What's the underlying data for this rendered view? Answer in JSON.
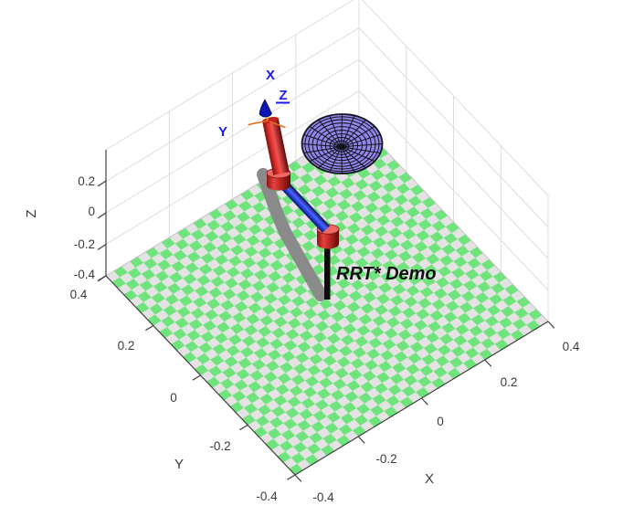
{
  "annotation": {
    "title": "RRT* Demo"
  },
  "axes": {
    "x": {
      "title": "X",
      "ticks": [
        "-0.4",
        "-0.2",
        "0",
        "0.2",
        "0.4"
      ]
    },
    "y": {
      "title": "Y",
      "ticks": [
        "0.4",
        "0.2",
        "0",
        "-0.2",
        "-0.4"
      ]
    },
    "z": {
      "title": "Z",
      "ticks": [
        "0.2",
        "0",
        "-0.2",
        "-0.4"
      ]
    }
  },
  "end_effector_frame": {
    "x": "X",
    "y": "Y",
    "z": "Z"
  },
  "colors": {
    "background": "#ffffff",
    "floor_green": "#6fe47d",
    "floor_light": "#e5e2e4",
    "grid_gray": "#dcdcdc",
    "axis_dark": "#404040",
    "tick_text": "#3a3a3a",
    "link_red": "#e23230",
    "link_blue": "#2c47ee",
    "joint_cap_red": "#ed6a62",
    "base_black": "#0d0d0d",
    "shadow_gray": "#8a8a8a",
    "disk_fill": "#9185ea",
    "disk_wire": "#14141e",
    "frame_label_blue": "#1a1af0",
    "frame_axis_orange": "#e2711d",
    "annotation_black": "#101010"
  },
  "chart_data": {
    "type": "3d-plot",
    "title": "RRT* Demo",
    "projection": "orthographic, MATLAB default 3-D view (azimuth -37.5 deg, elevation 30 deg)",
    "grid": true,
    "axes": {
      "x": {
        "label": "X",
        "range": [
          -0.4,
          0.4
        ],
        "ticks": [
          -0.4,
          -0.2,
          0,
          0.2,
          0.4
        ]
      },
      "y": {
        "label": "Y",
        "range": [
          -0.4,
          0.4
        ],
        "ticks": [
          -0.4,
          -0.2,
          0,
          0.2,
          0.4
        ]
      },
      "z": {
        "label": "Z",
        "range": [
          -0.4,
          0.4
        ],
        "visible_ticks": [
          -0.4,
          -0.2,
          0,
          0.2
        ]
      }
    },
    "objects": [
      {
        "name": "checkerboard-floor",
        "type": "surface",
        "z": -0.4,
        "extent_x": [
          -0.4,
          0.4
        ],
        "extent_y": [
          -0.4,
          0.4
        ],
        "squares_per_side": 32,
        "square_size": 0.025,
        "colors": [
          "green",
          "light-gray"
        ]
      },
      {
        "name": "obstacle-disk",
        "type": "wireframe-ellipsoid",
        "center_approx": [
          0.18,
          0.17,
          0.1
        ],
        "radius_approx": 0.1,
        "fill": "purple",
        "wire": "black",
        "rings": 9,
        "spokes": 20
      },
      {
        "name": "manipulator",
        "type": "robot-arm",
        "base_xy": [
          0,
          0
        ],
        "base_z": -0.4,
        "links": [
          {
            "name": "base-link",
            "color": "black",
            "from": "floor origin",
            "to": "lower joint"
          },
          {
            "name": "link-1",
            "color": "blue",
            "from": "lower red joint",
            "to": "upper red joint"
          },
          {
            "name": "link-2",
            "color": "red",
            "from": "upper red joint",
            "to": "end-effector"
          }
        ],
        "joints": [
          {
            "name": "lower-joint",
            "shape": "cylinder",
            "color": "red"
          },
          {
            "name": "upper-joint",
            "shape": "cylinder",
            "color": "red"
          }
        ],
        "end_effector_frame_labels": [
          "X",
          "Y",
          "Z"
        ]
      },
      {
        "name": "arm-shadow-path",
        "type": "projected-gray-path",
        "color": "gray",
        "description": "thick gray bent path on the floor under the arm"
      }
    ],
    "annotations": [
      {
        "text": "RRT* Demo",
        "style": "bold italic",
        "location": "on floor, right of robot base"
      }
    ]
  }
}
